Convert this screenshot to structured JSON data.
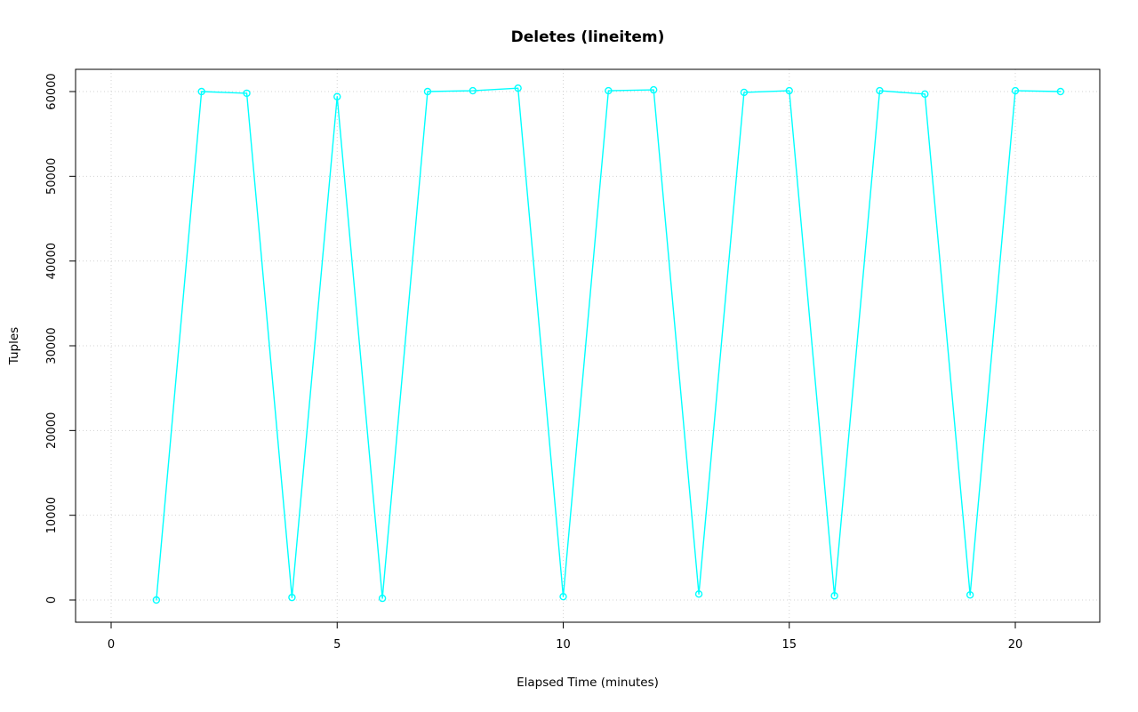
{
  "chart_data": {
    "type": "line",
    "title": "Deletes (lineitem)",
    "xlabel": "Elapsed Time (minutes)",
    "ylabel": "Tuples",
    "x": [
      1,
      2,
      3,
      4,
      5,
      6,
      7,
      8,
      9,
      10,
      11,
      12,
      13,
      14,
      15,
      16,
      17,
      18,
      19,
      20,
      21
    ],
    "y": [
      0,
      60000,
      59800,
      300,
      59400,
      200,
      60000,
      60100,
      60400,
      400,
      60100,
      60200,
      700,
      59900,
      60100,
      500,
      60100,
      59700,
      600,
      60100,
      60000
    ],
    "xticks": [
      0,
      5,
      10,
      15,
      20
    ],
    "yticks": [
      0,
      10000,
      20000,
      30000,
      40000,
      50000,
      60000
    ],
    "xlim": [
      -0.79,
      21.87
    ],
    "ylim": [
      -2620,
      62620
    ],
    "line_color": "#00ffff",
    "marker": "circle-open",
    "grid": true,
    "grid_color": "#d3d3d3",
    "box_color": "#000000",
    "background": "#ffffff"
  }
}
